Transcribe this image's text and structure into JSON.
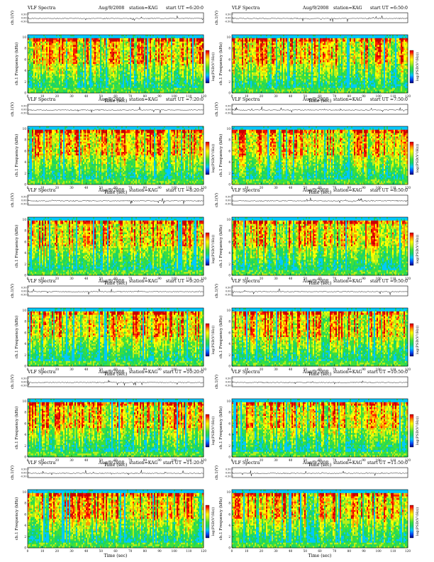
{
  "colors": {
    "background": "#ffffff",
    "axis": "#000000",
    "trace": "#111111",
    "spectrogram_scale": [
      "#00007a",
      "#0050ff",
      "#00c8ff",
      "#19d46a",
      "#3ee03a",
      "#b6ee1a",
      "#ffff00",
      "#ff9a00",
      "#ff1a00",
      "#c80000"
    ]
  },
  "chart_data": [
    {
      "type": "heatmap",
      "title": "VLF Spectra",
      "date": "Aug/9/2008",
      "station": "station=KAG",
      "start": "start UT =6:20:0",
      "wave_ylabel": "ch.1(V)",
      "ylabel": "ch.1 Frequency (kHz)",
      "xlabel": "Time (sec)",
      "colorbar_label": "log(PSD(V²/Hz))",
      "xticks": [
        "0",
        "10",
        "20",
        "30",
        "40",
        "50",
        "60",
        "70",
        "80",
        "90",
        "100",
        "110",
        "120"
      ],
      "yticks": [
        "0",
        "2",
        "4",
        "6",
        "8",
        "10"
      ],
      "wave_yticks": [
        "0.50",
        "0.00",
        "-0.50"
      ],
      "xlim": [
        0,
        120
      ],
      "ylim": [
        0,
        10
      ],
      "wave_ylim": [
        -0.5,
        0.5
      ]
    },
    {
      "type": "heatmap",
      "title": "VLF Spectra",
      "date": "Aug/9/2008",
      "station": "station=KAG",
      "start": "start UT =6:50:0",
      "wave_ylabel": "ch.1(V)",
      "ylabel": "ch.1 Frequency (kHz)",
      "xlabel": "Time (sec)",
      "colorbar_label": "log(PSD(V²/Hz))",
      "xticks": [
        "0",
        "10",
        "20",
        "30",
        "40",
        "50",
        "60",
        "70",
        "80",
        "90",
        "100",
        "110",
        "120"
      ],
      "yticks": [
        "0",
        "2",
        "4",
        "6",
        "8",
        "10"
      ],
      "wave_yticks": [
        "0.50",
        "0.00",
        "-0.50"
      ],
      "xlim": [
        0,
        120
      ],
      "ylim": [
        0,
        10
      ],
      "wave_ylim": [
        -0.5,
        0.5
      ]
    },
    {
      "type": "heatmap",
      "title": "VLF Spectra",
      "date": "Aug/9/2008",
      "station": "station=KAG",
      "start": "start UT =7:20:0",
      "wave_ylabel": "ch.1(V)",
      "ylabel": "ch.1 Frequency (kHz)",
      "xlabel": "Time (sec)",
      "colorbar_label": "log(PSD(V²/Hz))",
      "xticks": [
        "0",
        "10",
        "20",
        "30",
        "40",
        "50",
        "60",
        "70",
        "80",
        "90",
        "100",
        "110",
        "120"
      ],
      "yticks": [
        "0",
        "2",
        "4",
        "6",
        "8",
        "10"
      ],
      "wave_yticks": [
        "0.50",
        "0.00",
        "-0.50"
      ],
      "xlim": [
        0,
        120
      ],
      "ylim": [
        0,
        10
      ],
      "wave_ylim": [
        -0.5,
        0.5
      ]
    },
    {
      "type": "heatmap",
      "title": "VLF Spectra",
      "date": "Aug/9/2008",
      "station": "station=KAG",
      "start": "start UT =7:50:0",
      "wave_ylabel": "ch.1(V)",
      "ylabel": "ch.1 Frequency (kHz)",
      "xlabel": "Time (sec)",
      "colorbar_label": "log(PSD(V²/Hz))",
      "xticks": [
        "0",
        "10",
        "20",
        "30",
        "40",
        "50",
        "60",
        "70",
        "80",
        "90",
        "100",
        "110",
        "120"
      ],
      "yticks": [
        "0",
        "2",
        "4",
        "6",
        "8",
        "10"
      ],
      "wave_yticks": [
        "0.50",
        "0.00",
        "-0.50"
      ],
      "xlim": [
        0,
        120
      ],
      "ylim": [
        0,
        10
      ],
      "wave_ylim": [
        -0.5,
        0.5
      ]
    },
    {
      "type": "heatmap",
      "title": "VLF Spectra",
      "date": "Aug/9/2008",
      "station": "station=KAG",
      "start": "start UT =8:20:0",
      "wave_ylabel": "ch.1(V)",
      "ylabel": "ch.1 Frequency (kHz)",
      "xlabel": "Time (sec)",
      "colorbar_label": "log(PSD(V²/Hz))",
      "xticks": [
        "0",
        "10",
        "20",
        "30",
        "40",
        "50",
        "60",
        "70",
        "80",
        "90",
        "100",
        "110",
        "120"
      ],
      "yticks": [
        "0",
        "2",
        "4",
        "6",
        "8",
        "10"
      ],
      "wave_yticks": [
        "0.50",
        "0.00",
        "-0.50"
      ],
      "xlim": [
        0,
        120
      ],
      "ylim": [
        0,
        10
      ],
      "wave_ylim": [
        -0.5,
        0.5
      ]
    },
    {
      "type": "heatmap",
      "title": "VLF Spectra",
      "date": "Aug/9/2008",
      "station": "station=KAG",
      "start": "start UT =8:50:0",
      "wave_ylabel": "ch.1(V)",
      "ylabel": "ch.1 Frequency (kHz)",
      "xlabel": "Time (sec)",
      "colorbar_label": "log(PSD(V²/Hz))",
      "xticks": [
        "0",
        "10",
        "20",
        "30",
        "40",
        "50",
        "60",
        "70",
        "80",
        "90",
        "100",
        "110",
        "120"
      ],
      "yticks": [
        "0",
        "2",
        "4",
        "6",
        "8",
        "10"
      ],
      "wave_yticks": [
        "0.50",
        "0.00",
        "-0.50"
      ],
      "xlim": [
        0,
        120
      ],
      "ylim": [
        0,
        10
      ],
      "wave_ylim": [
        -0.5,
        0.5
      ]
    },
    {
      "type": "heatmap",
      "title": "VLF Spectra",
      "date": "Aug/9/2008",
      "station": "station=KAG",
      "start": "start UT =9:20:0",
      "wave_ylabel": "ch.1(V)",
      "ylabel": "ch.1 Frequency (kHz)",
      "xlabel": "Time (sec)",
      "colorbar_label": "log(PSD(V²/Hz))",
      "xticks": [
        "0",
        "10",
        "20",
        "30",
        "40",
        "50",
        "60",
        "70",
        "80",
        "90",
        "100",
        "110",
        "120"
      ],
      "yticks": [
        "0",
        "2",
        "4",
        "6",
        "8",
        "10"
      ],
      "wave_yticks": [
        "0.50",
        "0.00",
        "-0.50"
      ],
      "xlim": [
        0,
        120
      ],
      "ylim": [
        0,
        10
      ],
      "wave_ylim": [
        -0.5,
        0.5
      ]
    },
    {
      "type": "heatmap",
      "title": "VLF Spectra",
      "date": "Aug/9/2008",
      "station": "station=KAG",
      "start": "start UT =9:50:0",
      "wave_ylabel": "ch.1(V)",
      "ylabel": "ch.1 Frequency (kHz)",
      "xlabel": "Time (sec)",
      "colorbar_label": "log(PSD(V²/Hz))",
      "xticks": [
        "0",
        "10",
        "20",
        "30",
        "40",
        "50",
        "60",
        "70",
        "80",
        "90",
        "100",
        "110",
        "120"
      ],
      "yticks": [
        "0",
        "2",
        "4",
        "6",
        "8",
        "10"
      ],
      "wave_yticks": [
        "0.50",
        "0.00",
        "-0.50"
      ],
      "xlim": [
        0,
        120
      ],
      "ylim": [
        0,
        10
      ],
      "wave_ylim": [
        -0.5,
        0.5
      ]
    },
    {
      "type": "heatmap",
      "title": "VLF Spectra",
      "date": "Aug/9/2008",
      "station": "station=KAG",
      "start": "start UT =10:20:0",
      "wave_ylabel": "ch.1(V)",
      "ylabel": "ch.1 Frequency (kHz)",
      "xlabel": "Time (sec)",
      "colorbar_label": "log(PSD(V²/Hz))",
      "xticks": [
        "0",
        "10",
        "20",
        "30",
        "40",
        "50",
        "60",
        "70",
        "80",
        "90",
        "100",
        "110",
        "120"
      ],
      "yticks": [
        "0",
        "2",
        "4",
        "6",
        "8",
        "10"
      ],
      "wave_yticks": [
        "0.50",
        "0.00",
        "-0.50"
      ],
      "xlim": [
        0,
        120
      ],
      "ylim": [
        0,
        10
      ],
      "wave_ylim": [
        -0.5,
        0.5
      ]
    },
    {
      "type": "heatmap",
      "title": "VLF Spectra",
      "date": "Aug/9/2008",
      "station": "station=KAG",
      "start": "start UT =10:50:0",
      "wave_ylabel": "ch.1(V)",
      "ylabel": "ch.1 Frequency (kHz)",
      "xlabel": "Time (sec)",
      "colorbar_label": "log(PSD(V²/Hz))",
      "xticks": [
        "0",
        "10",
        "20",
        "30",
        "40",
        "50",
        "60",
        "70",
        "80",
        "90",
        "100",
        "110",
        "120"
      ],
      "yticks": [
        "0",
        "2",
        "4",
        "6",
        "8",
        "10"
      ],
      "wave_yticks": [
        "0.50",
        "0.00",
        "-0.50"
      ],
      "xlim": [
        0,
        120
      ],
      "ylim": [
        0,
        10
      ],
      "wave_ylim": [
        -0.5,
        0.5
      ]
    },
    {
      "type": "heatmap",
      "title": "VLF Spectra",
      "date": "Aug/9/2008",
      "station": "station=KAG",
      "start": "start UT =11:20:0",
      "wave_ylabel": "ch.1(V)",
      "ylabel": "ch.1 Frequency (kHz)",
      "xlabel": "Time (sec)",
      "colorbar_label": "log(PSD(V²/Hz))",
      "xticks": [
        "0",
        "10",
        "20",
        "30",
        "40",
        "50",
        "60",
        "70",
        "80",
        "90",
        "100",
        "110",
        "120"
      ],
      "yticks": [
        "0",
        "2",
        "4",
        "6",
        "8",
        "10"
      ],
      "wave_yticks": [
        "0.50",
        "0.00",
        "-0.50"
      ],
      "xlim": [
        0,
        120
      ],
      "ylim": [
        0,
        10
      ],
      "wave_ylim": [
        -0.5,
        0.5
      ]
    },
    {
      "type": "heatmap",
      "title": "VLF Spectra",
      "date": "Aug/9/2008",
      "station": "station=KAG",
      "start": "start UT =11:50:0",
      "wave_ylabel": "ch.1(V)",
      "ylabel": "ch.1 Frequency (kHz)",
      "xlabel": "Time (sec)",
      "colorbar_label": "log(PSD(V²/Hz))",
      "xticks": [
        "0",
        "10",
        "20",
        "30",
        "40",
        "50",
        "60",
        "70",
        "80",
        "90",
        "100",
        "110",
        "120"
      ],
      "yticks": [
        "0",
        "2",
        "4",
        "6",
        "8",
        "10"
      ],
      "wave_yticks": [
        "0.50",
        "0.00",
        "-0.50"
      ],
      "xlim": [
        0,
        120
      ],
      "ylim": [
        0,
        10
      ],
      "wave_ylim": [
        -0.5,
        0.5
      ]
    }
  ]
}
